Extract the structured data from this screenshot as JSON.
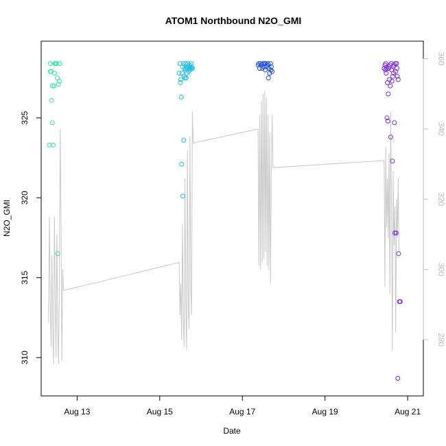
{
  "chart_data": {
    "type": "line",
    "title": "ATOM1 Northbound N2O_GMI",
    "xlabel": "Date",
    "ylabel": "N2O_GMI",
    "x_ticks": [
      {
        "label": "Aug 13",
        "day": 13
      },
      {
        "label": "Aug 15",
        "day": 15
      },
      {
        "label": "Aug 17",
        "day": 17
      },
      {
        "label": "Aug 19",
        "day": 19
      },
      {
        "label": "Aug 21",
        "day": 21
      }
    ],
    "xlim": [
      12.13,
      21.38
    ],
    "y_ticks": [
      310,
      315,
      320,
      325
    ],
    "ylim": [
      307.6,
      329.8
    ],
    "y2_ticks": [
      280,
      300,
      320,
      340,
      360
    ],
    "y2lim": [
      264,
      365
    ],
    "series": [
      {
        "kind": "line",
        "axis": "right",
        "color": "#c8c8c8",
        "x": [
          12.31,
          12.33,
          12.35,
          12.37,
          12.39,
          12.41,
          12.43,
          12.45,
          12.47,
          12.49,
          12.51,
          12.53,
          12.55,
          12.57,
          12.59,
          12.61,
          12.63,
          12.65,
          12.67,
          15.47,
          15.49,
          15.51,
          15.53,
          15.55,
          15.57,
          15.59,
          15.61,
          15.63,
          15.65,
          15.67,
          15.69,
          15.71,
          15.73,
          15.75,
          15.77,
          15.79,
          15.81,
          17.38,
          17.4,
          17.42,
          17.44,
          17.46,
          17.48,
          17.5,
          17.52,
          17.54,
          17.56,
          17.58,
          17.6,
          17.62,
          17.64,
          17.66,
          17.68,
          17.7,
          17.72,
          17.74,
          20.43,
          20.45,
          20.47,
          20.49,
          20.51,
          20.53,
          20.55,
          20.57,
          20.59,
          20.61,
          20.63,
          20.65,
          20.67,
          20.69,
          20.71,
          20.73,
          20.75,
          20.77,
          20.79
        ],
        "y": [
          285,
          315,
          290,
          278,
          304,
          283,
          273,
          315,
          291,
          275,
          310,
          285,
          273,
          297,
          340,
          315,
          274,
          300,
          294,
          302,
          287,
          296,
          280,
          313,
          286,
          278,
          326,
          289,
          277,
          334,
          290,
          283,
          338,
          295,
          287,
          345,
          336,
          340,
          301,
          344,
          300,
          348,
          302,
          350,
          303,
          351,
          305,
          349,
          301,
          344,
          300,
          339,
          296,
          327,
          344,
          329,
          331,
          295,
          335,
          312,
          326,
          309,
          333,
          293,
          345,
          314,
          277,
          328,
          307,
          318,
          282,
          320,
          309,
          326,
          305
        ]
      },
      {
        "kind": "points",
        "axis": "left",
        "color": "#2ee8a5",
        "x": [
          12.33,
          12.35,
          12.35,
          12.37,
          12.38,
          12.4,
          12.4,
          12.42,
          12.44,
          12.45,
          12.46,
          12.48,
          12.5,
          12.52,
          12.53,
          12.55,
          12.57,
          12.58
        ],
        "y": [
          323.3,
          327.9,
          328.4,
          327.9,
          326.1,
          324.7,
          327.0,
          323.3,
          327.0,
          327.8,
          328.4,
          328.4,
          328.4,
          327.5,
          316.5,
          327.1,
          327.3,
          328.4
        ]
      },
      {
        "kind": "points",
        "axis": "left",
        "color": "#1ebfe8",
        "x": [
          15.47,
          15.49,
          15.5,
          15.51,
          15.52,
          15.53,
          15.54,
          15.55,
          15.56,
          15.57,
          15.58,
          15.59,
          15.6,
          15.61,
          15.62,
          15.63,
          15.64,
          15.65,
          15.66,
          15.67,
          15.68,
          15.69,
          15.7,
          15.71,
          15.72,
          15.73,
          15.74,
          15.75,
          15.76,
          15.77,
          15.78,
          15.79
        ],
        "y": [
          327.8,
          328.4,
          327.2,
          327.4,
          326.3,
          322.1,
          327.8,
          328.2,
          320.1,
          328.4,
          323.6,
          327.6,
          328.1,
          327.5,
          328.0,
          328.4,
          327.5,
          328.1,
          327.8,
          328.1,
          328.4,
          328.2,
          327.9,
          328.1,
          328.3,
          328.1,
          328.0,
          328.1,
          328.4,
          328.2,
          328.1,
          328.1
        ]
      },
      {
        "kind": "points",
        "axis": "left",
        "color": "#1d4fe8",
        "x": [
          17.38,
          17.4,
          17.42,
          17.44,
          17.46,
          17.48,
          17.5,
          17.52,
          17.54,
          17.55,
          17.56,
          17.58,
          17.6,
          17.62,
          17.63,
          17.64,
          17.66,
          17.68,
          17.69,
          17.7,
          17.72
        ],
        "y": [
          328.3,
          328.4,
          328.1,
          328.4,
          328.3,
          328.1,
          328.4,
          328.2,
          328.4,
          328.0,
          328.4,
          328.2,
          328.3,
          328.4,
          327.5,
          328.1,
          327.8,
          328.4,
          328.0,
          328.2,
          327.9
        ]
      },
      {
        "kind": "points",
        "axis": "left",
        "color": "#7a2ae8",
        "x": [
          20.43,
          20.45,
          20.46,
          20.47,
          20.48,
          20.49,
          20.5,
          20.51,
          20.52,
          20.53,
          20.54,
          20.55,
          20.56,
          20.57,
          20.58,
          20.59,
          20.6,
          20.61,
          20.62,
          20.63,
          20.64,
          20.65,
          20.66,
          20.67,
          20.68,
          20.69,
          20.7,
          20.71,
          20.72,
          20.73,
          20.74,
          20.75,
          20.76,
          20.77,
          20.78,
          20.8,
          20.82
        ],
        "y": [
          328.1,
          328.3,
          328.0,
          328.4,
          327.8,
          328.1,
          325.0,
          327.2,
          324.8,
          326.5,
          328.1,
          328.2,
          327.4,
          328.3,
          327.0,
          323.8,
          328.4,
          328.0,
          327.3,
          322.3,
          327.6,
          328.2,
          327.8,
          328.3,
          324.7,
          317.8,
          328.4,
          327.9,
          317.8,
          328.4,
          328.1,
          327.6,
          308.7,
          327.4,
          316.5,
          313.5,
          313.5
        ]
      }
    ]
  }
}
